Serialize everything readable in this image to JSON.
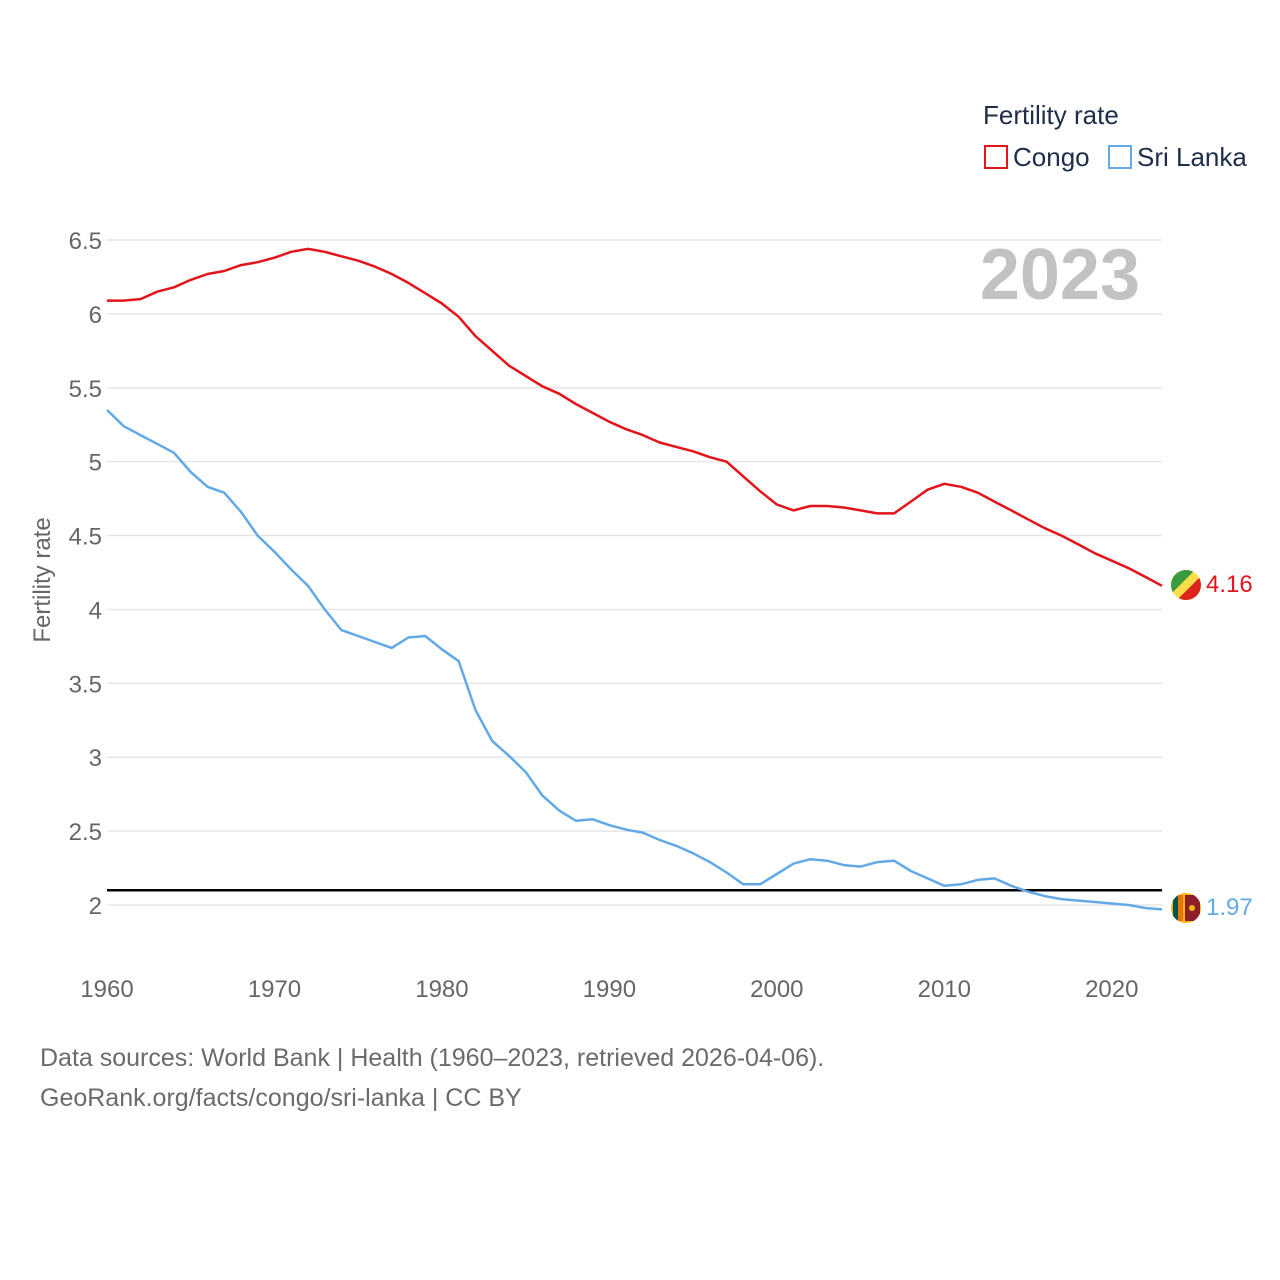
{
  "chart_data": {
    "type": "line",
    "title": "Fertility rate",
    "year_label": "2023",
    "xlabel": "",
    "ylabel": "Fertility rate",
    "xlim": [
      1960,
      2023
    ],
    "ylim": [
      1.7,
      6.6
    ],
    "x_ticks": [
      1960,
      1970,
      1980,
      1990,
      2000,
      2010,
      2020
    ],
    "y_ticks": [
      2,
      2.5,
      3,
      3.5,
      4,
      4.5,
      5,
      5.5,
      6,
      6.5
    ],
    "y_tick_labels": [
      "2",
      "2.5",
      "3",
      "3.5",
      "4",
      "4.5",
      "5",
      "5.5",
      "6",
      "6.5"
    ],
    "reference_line": {
      "value": 2.1,
      "color": "#000000"
    },
    "x": [
      1960,
      1961,
      1962,
      1963,
      1964,
      1965,
      1966,
      1967,
      1968,
      1969,
      1970,
      1971,
      1972,
      1973,
      1974,
      1975,
      1976,
      1977,
      1978,
      1979,
      1980,
      1981,
      1982,
      1983,
      1984,
      1985,
      1986,
      1987,
      1988,
      1989,
      1990,
      1991,
      1992,
      1993,
      1994,
      1995,
      1996,
      1997,
      1998,
      1999,
      2000,
      2001,
      2002,
      2003,
      2004,
      2005,
      2006,
      2007,
      2008,
      2009,
      2010,
      2011,
      2012,
      2013,
      2014,
      2015,
      2016,
      2017,
      2018,
      2019,
      2020,
      2021,
      2022,
      2023
    ],
    "series": [
      {
        "name": "Congo",
        "color": "#e3141b",
        "end_label": "4.16",
        "values": [
          6.09,
          6.09,
          6.1,
          6.15,
          6.18,
          6.23,
          6.27,
          6.29,
          6.33,
          6.35,
          6.38,
          6.42,
          6.44,
          6.42,
          6.39,
          6.36,
          6.32,
          6.27,
          6.21,
          6.14,
          6.07,
          5.98,
          5.85,
          5.75,
          5.65,
          5.58,
          5.51,
          5.46,
          5.39,
          5.33,
          5.27,
          5.22,
          5.18,
          5.13,
          5.1,
          5.07,
          5.03,
          5.0,
          4.9,
          4.8,
          4.71,
          4.67,
          4.7,
          4.7,
          4.69,
          4.67,
          4.65,
          4.65,
          4.73,
          4.81,
          4.85,
          4.83,
          4.79,
          4.73,
          4.67,
          4.61,
          4.55,
          4.5,
          4.44,
          4.38,
          4.33,
          4.28,
          4.22,
          4.16
        ]
      },
      {
        "name": "Sri Lanka",
        "color": "#63a9e6",
        "end_label": "1.97",
        "values": [
          5.35,
          5.24,
          5.18,
          5.12,
          5.06,
          4.93,
          4.83,
          4.79,
          4.66,
          4.5,
          4.39,
          4.27,
          4.16,
          4.0,
          3.86,
          3.82,
          3.78,
          3.74,
          3.81,
          3.82,
          3.73,
          3.65,
          3.32,
          3.11,
          3.01,
          2.9,
          2.74,
          2.64,
          2.57,
          2.58,
          2.54,
          2.51,
          2.49,
          2.44,
          2.4,
          2.35,
          2.29,
          2.22,
          2.14,
          2.14,
          2.21,
          2.28,
          2.31,
          2.3,
          2.27,
          2.26,
          2.29,
          2.3,
          2.23,
          2.18,
          2.13,
          2.14,
          2.17,
          2.18,
          2.13,
          2.09,
          2.06,
          2.04,
          2.03,
          2.02,
          2.01,
          2.0,
          1.98,
          1.97
        ]
      }
    ]
  },
  "legend": {
    "title": "Fertility rate",
    "items": [
      "Congo",
      "Sri Lanka"
    ]
  },
  "source": {
    "line1": "Data sources: World Bank | Health (1960–2023, retrieved 2026-04-06).",
    "line2": "GeoRank.org/facts/congo/sri-lanka | CC BY"
  },
  "colors": {
    "grid": "#e6e6e6",
    "tick_text": "#666666",
    "legend_text": "#1f2d4a",
    "year_watermark": "#c2c2c2"
  },
  "icons": [
    "congo-flag-icon",
    "sri-lanka-flag-icon"
  ]
}
